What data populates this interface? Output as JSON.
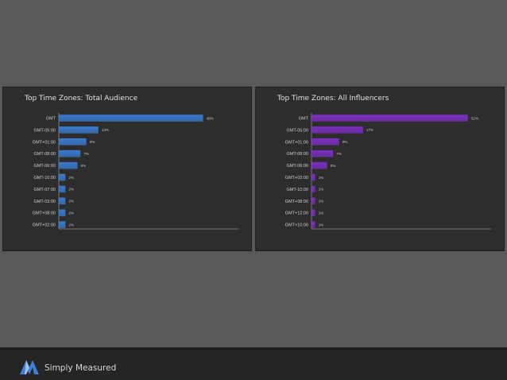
{
  "chart_data": [
    {
      "type": "bar",
      "orientation": "horizontal",
      "title": "Top Time Zones: Total Audience",
      "categories": [
        "GMT",
        "GMT-05:00",
        "GMT+01:00",
        "GMT-08:00",
        "GMT-06:00",
        "GMT-10:00",
        "GMT-07:00",
        "GMT-03:00",
        "GMT+08:00",
        "GMT+02:00"
      ],
      "values": [
        48,
        13,
        9,
        7,
        6,
        2,
        2,
        2,
        2,
        2
      ],
      "value_labels": [
        "48%",
        "13%",
        "9%",
        "7%",
        "6%",
        "2%",
        "2%",
        "2%",
        "2%",
        "2%"
      ],
      "xlim": [
        0,
        60
      ],
      "color": "#3a7ad0",
      "grid": false
    },
    {
      "type": "bar",
      "orientation": "horizontal",
      "title": "Top Time Zones: All Influencers",
      "categories": [
        "GMT",
        "GMT-05:00",
        "GMT+01:00",
        "GMT-08:00",
        "GMT-06:00",
        "GMT+02:00",
        "GMT-10:00",
        "GMT+08:00",
        "GMT+12:00",
        "GMT+10:00"
      ],
      "values": [
        52,
        17,
        9,
        7,
        5,
        1,
        1,
        1,
        1,
        1
      ],
      "value_labels": [
        "52%",
        "17%",
        "9%",
        "7%",
        "5%",
        "1%",
        "1%",
        "1%",
        "1%",
        "1%"
      ],
      "xlim": [
        0,
        60
      ],
      "color": "#7b2fc0",
      "grid": false
    }
  ],
  "footer": {
    "brand": "Simply Measured",
    "logo_icon": "simply-measured-logo-icon"
  }
}
